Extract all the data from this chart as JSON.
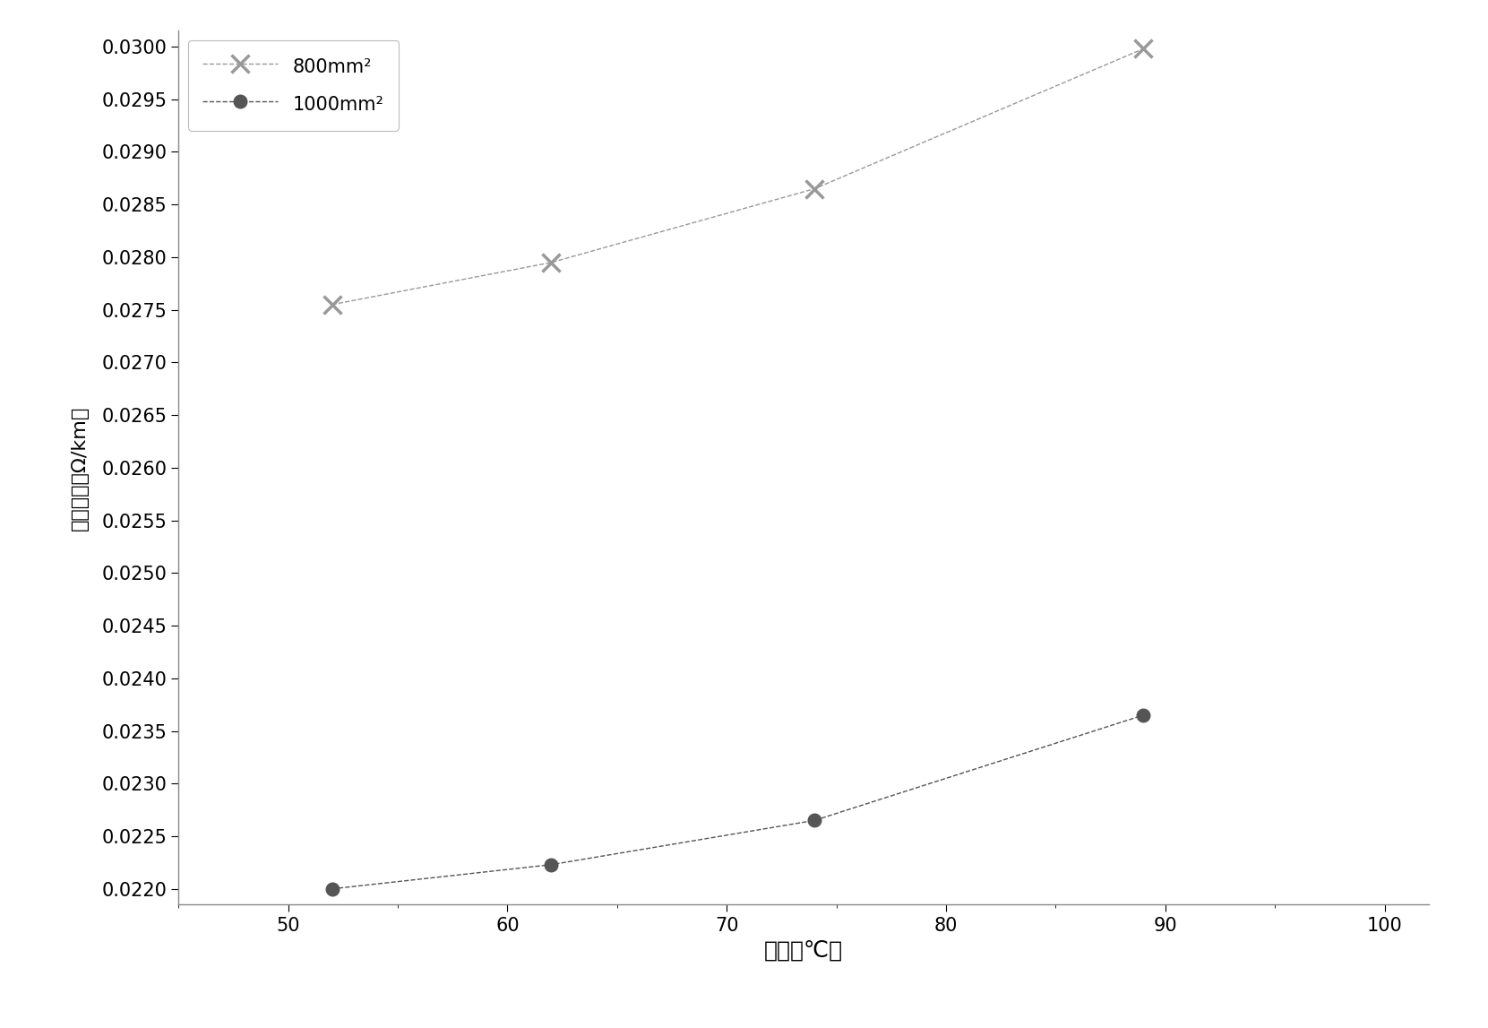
{
  "series_800": {
    "x": [
      52,
      62,
      74,
      89
    ],
    "y": [
      0.02755,
      0.02795,
      0.02865,
      0.02998
    ],
    "label": "800mm²",
    "color": "#999999",
    "marker": "x",
    "markersize": 14,
    "markeredgewidth": 2.5,
    "linewidth": 1.0,
    "linestyle": "--"
  },
  "series_1000": {
    "x": [
      52,
      62,
      74,
      89
    ],
    "y": [
      0.022,
      0.02223,
      0.02265,
      0.02365
    ],
    "label": "1000mm²",
    "color": "#555555",
    "marker": "o",
    "markersize": 10,
    "markeredgewidth": 1.5,
    "linewidth": 1.0,
    "linestyle": "--"
  },
  "xlabel": "温度（℃）",
  "ylabel": "交流电阱（Ω/km）",
  "xlim": [
    45,
    102
  ],
  "ylim": [
    0.02185,
    0.03015
  ],
  "xticks": [
    50,
    60,
    70,
    80,
    90,
    100
  ],
  "ytick_start": 0.022,
  "ytick_end": 0.03,
  "ytick_step": 0.0005,
  "xlabel_fontsize": 18,
  "ylabel_fontsize": 16,
  "tick_fontsize": 15,
  "legend_fontsize": 15,
  "fig_width": 16.61,
  "fig_height": 11.47,
  "dpi": 100,
  "background_color": "#ffffff"
}
